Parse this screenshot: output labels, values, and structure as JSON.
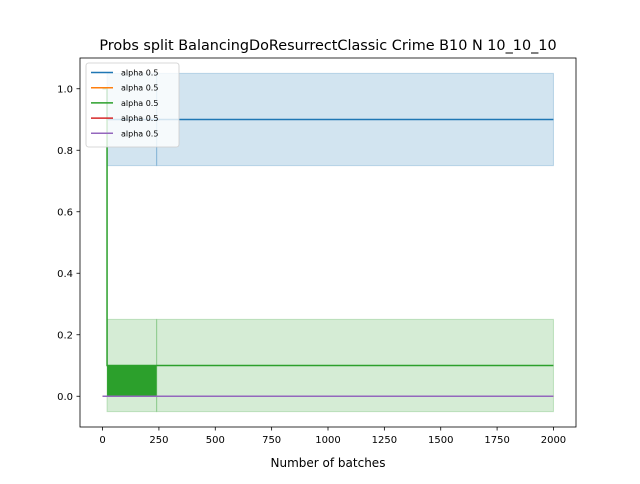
{
  "chart_data": {
    "type": "line",
    "title": "Probs split BalancingDoResurrectClassic Crime B10 N 10_10_10",
    "xlabel": "Number of batches",
    "ylabel": "",
    "xlim": [
      -100,
      2100
    ],
    "ylim": [
      -0.1,
      1.1
    ],
    "xticks": [
      0,
      250,
      500,
      750,
      1000,
      1250,
      1500,
      1750,
      2000
    ],
    "xtick_labels": [
      "0",
      "250",
      "500",
      "750",
      "1000",
      "1250",
      "1500",
      "1750",
      "2000"
    ],
    "yticks": [
      0.0,
      0.2,
      0.4,
      0.6,
      0.8,
      1.0
    ],
    "ytick_labels": [
      "0.0",
      "0.2",
      "0.4",
      "0.6",
      "0.8",
      "1.0"
    ],
    "grid": false,
    "legend": "top-left",
    "series": [
      {
        "name": "alpha 0.5",
        "color": "#1f77b4",
        "x": [
          0,
          20,
          20,
          2000
        ],
        "y": [
          1.0,
          1.0,
          0.9,
          0.9
        ],
        "band": [
          {
            "x0": 20,
            "x1": 240,
            "lo": 0.75,
            "hi": 1.05
          },
          {
            "x0": 240,
            "x1": 2000,
            "lo": 0.75,
            "hi": 1.05
          }
        ]
      },
      {
        "name": "alpha 0.5",
        "color": "#ff7f0e",
        "x": [
          0,
          2000
        ],
        "y": [
          0.0,
          0.0
        ],
        "band": []
      },
      {
        "name": "alpha 0.5",
        "color": "#2ca02c",
        "x": [
          0,
          20,
          20,
          240,
          240,
          2000
        ],
        "y": [
          1.0,
          1.0,
          0.1,
          0.1,
          0.1,
          0.1
        ],
        "band": [
          {
            "x0": 20,
            "x1": 240,
            "lo": -0.05,
            "hi": 0.25
          },
          {
            "x0": 240,
            "x1": 2000,
            "lo": -0.05,
            "hi": 0.25
          }
        ],
        "fill": {
          "x0": 20,
          "x1": 240,
          "lo": 0.0,
          "hi": 0.1
        }
      },
      {
        "name": "alpha 0.5",
        "color": "#d62728",
        "x": [
          0,
          2000
        ],
        "y": [
          0.0,
          0.0
        ],
        "band": []
      },
      {
        "name": "alpha 0.5",
        "color": "#9467bd",
        "x": [
          0,
          2000
        ],
        "y": [
          0.0,
          0.0
        ],
        "band": []
      }
    ]
  }
}
